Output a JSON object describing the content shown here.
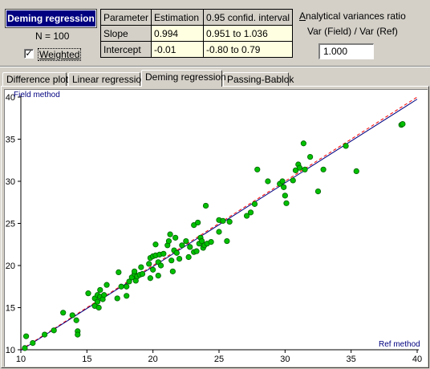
{
  "header": {
    "title": "Deming regression",
    "n_label": "N = 100",
    "weighted_label": "Weighted",
    "weighted_checked": true,
    "weighted_mark": "✓"
  },
  "results_table": {
    "headers": [
      "Parameter",
      "Estimation",
      "0.95 confid. interval"
    ],
    "rows": [
      [
        "Slope",
        "0.994",
        "0.951 to 1.036"
      ],
      [
        "Intercept",
        "-0.01",
        "-0.80 to 0.79"
      ]
    ]
  },
  "variance_ratio": {
    "title_underlined": "A",
    "title_rest": "nalytical variances ratio",
    "subtitle": "Var (Field) / Var (Ref)",
    "value": "1.000"
  },
  "tabs": [
    {
      "label": "Difference plot",
      "active": false
    },
    {
      "label": "Linear regression",
      "active": false
    },
    {
      "label": "Deming regression",
      "active": true
    },
    {
      "label": "Passing-Bablok",
      "active": false
    }
  ],
  "chart_data": {
    "type": "scatter",
    "xlabel": "Ref method",
    "ylabel": "Field method",
    "xlim": [
      10,
      40
    ],
    "ylim": [
      10,
      40
    ],
    "x_ticks": [
      10,
      15,
      20,
      25,
      30,
      35,
      40
    ],
    "y_ticks": [
      10,
      15,
      20,
      25,
      30,
      35,
      40
    ],
    "grid": false,
    "point_color": "#00c000",
    "regression_line": {
      "slope": 0.994,
      "intercept": -0.01,
      "color": "#000080"
    },
    "identity_line": {
      "slope": 1,
      "intercept": 0,
      "color": "#ff0000",
      "dashed": true
    },
    "points": [
      [
        10.3,
        10.2
      ],
      [
        10.4,
        11.6
      ],
      [
        10.9,
        10.8
      ],
      [
        11.8,
        11.8
      ],
      [
        12.5,
        12.3
      ],
      [
        13.2,
        14.4
      ],
      [
        13.9,
        14.1
      ],
      [
        14.2,
        13.5
      ],
      [
        14.3,
        12.2
      ],
      [
        14.3,
        11.8
      ],
      [
        15.1,
        16.7
      ],
      [
        15.6,
        16.1
      ],
      [
        15.6,
        15.2
      ],
      [
        15.8,
        15.7
      ],
      [
        15.8,
        16.5
      ],
      [
        15.9,
        15.0
      ],
      [
        16.0,
        16.3
      ],
      [
        16.0,
        17.1
      ],
      [
        16.2,
        16.0
      ],
      [
        16.3,
        16.5
      ],
      [
        16.5,
        17.7
      ],
      [
        17.3,
        16.1
      ],
      [
        17.4,
        19.2
      ],
      [
        18.0,
        16.4
      ],
      [
        18.0,
        17.5
      ],
      [
        18.2,
        18.1
      ],
      [
        18.4,
        18.6
      ],
      [
        18.6,
        19.0
      ],
      [
        18.6,
        19.3
      ],
      [
        18.7,
        18.2
      ],
      [
        18.8,
        18.7
      ],
      [
        19.0,
        18.9
      ],
      [
        19.2,
        19.0
      ],
      [
        19.7,
        20.2
      ],
      [
        19.8,
        20.9
      ],
      [
        19.8,
        18.5
      ],
      [
        20.0,
        19.5
      ],
      [
        20.0,
        21.1
      ],
      [
        20.2,
        21.2
      ],
      [
        20.2,
        22.5
      ],
      [
        20.4,
        18.8
      ],
      [
        20.4,
        20.4
      ],
      [
        20.5,
        21.3
      ],
      [
        20.6,
        20.0
      ],
      [
        20.8,
        21.4
      ],
      [
        21.1,
        22.4
      ],
      [
        21.2,
        22.9
      ],
      [
        21.3,
        23.7
      ],
      [
        21.4,
        20.6
      ],
      [
        21.5,
        19.3
      ],
      [
        21.6,
        21.8
      ],
      [
        21.7,
        23.3
      ],
      [
        21.8,
        21.5
      ],
      [
        22.0,
        20.8
      ],
      [
        22.2,
        22.4
      ],
      [
        22.5,
        22.9
      ],
      [
        22.7,
        21.0
      ],
      [
        22.8,
        22.2
      ],
      [
        23.1,
        24.8
      ],
      [
        23.1,
        21.6
      ],
      [
        23.3,
        21.7
      ],
      [
        23.4,
        25.1
      ],
      [
        23.5,
        22.6
      ],
      [
        23.6,
        23.3
      ],
      [
        23.7,
        22.9
      ],
      [
        23.8,
        22.1
      ],
      [
        23.9,
        22.4
      ],
      [
        24.0,
        27.1
      ],
      [
        24.1,
        22.6
      ],
      [
        24.4,
        22.8
      ],
      [
        25.0,
        25.4
      ],
      [
        25.0,
        24.0
      ],
      [
        25.3,
        25.3
      ],
      [
        25.6,
        22.9
      ],
      [
        25.8,
        25.2
      ],
      [
        27.1,
        25.9
      ],
      [
        27.4,
        26.3
      ],
      [
        27.7,
        27.3
      ],
      [
        27.9,
        31.4
      ],
      [
        28.7,
        30.0
      ],
      [
        29.6,
        29.7
      ],
      [
        29.8,
        30.0
      ],
      [
        29.9,
        29.3
      ],
      [
        30.0,
        28.3
      ],
      [
        30.1,
        27.4
      ],
      [
        30.6,
        30.1
      ],
      [
        30.8,
        31.3
      ],
      [
        31.0,
        32.0
      ],
      [
        31.1,
        31.6
      ],
      [
        31.4,
        34.5
      ],
      [
        31.5,
        31.4
      ],
      [
        31.9,
        32.9
      ],
      [
        32.5,
        28.8
      ],
      [
        32.9,
        31.4
      ],
      [
        34.6,
        34.2
      ],
      [
        35.4,
        31.2
      ],
      [
        38.8,
        36.7
      ],
      [
        38.9,
        36.8
      ],
      [
        17.6,
        17.5
      ],
      [
        19.1,
        19.8
      ]
    ]
  }
}
